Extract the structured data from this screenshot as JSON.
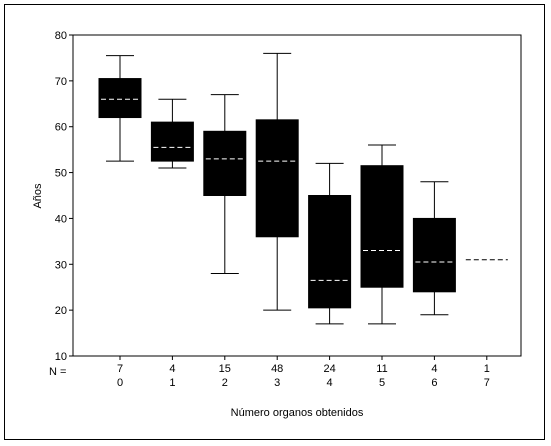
{
  "chart_data": {
    "type": "boxplot",
    "title": "",
    "xlabel": "Número organos obtenidos",
    "ylabel": "Años",
    "ylim": [
      10,
      80
    ],
    "yticks": [
      10,
      20,
      30,
      40,
      50,
      60,
      70,
      80
    ],
    "n_prefix": "N =",
    "categories": [
      "0",
      "1",
      "2",
      "3",
      "4",
      "5",
      "6",
      "7"
    ],
    "n_values": [
      "7",
      "4",
      "15",
      "48",
      "24",
      "11",
      "4",
      "1"
    ],
    "boxes": [
      {
        "category": "0",
        "n": 7,
        "min": 52.5,
        "q1": 62.0,
        "median": 66.0,
        "q3": 70.5,
        "max": 75.5
      },
      {
        "category": "1",
        "n": 4,
        "min": 51.0,
        "q1": 52.5,
        "median": 55.5,
        "q3": 61.0,
        "max": 66.0
      },
      {
        "category": "2",
        "n": 15,
        "min": 28.0,
        "q1": 45.0,
        "median": 53.0,
        "q3": 59.0,
        "max": 67.0
      },
      {
        "category": "3",
        "n": 48,
        "min": 20.0,
        "q1": 36.0,
        "median": 52.5,
        "q3": 61.5,
        "max": 76.0
      },
      {
        "category": "4",
        "n": 24,
        "min": 17.0,
        "q1": 20.5,
        "median": 26.5,
        "q3": 45.0,
        "max": 52.0
      },
      {
        "category": "5",
        "n": 11,
        "min": 17.0,
        "q1": 25.0,
        "median": 33.0,
        "q3": 51.5,
        "max": 56.0
      },
      {
        "category": "6",
        "n": 4,
        "min": 19.0,
        "q1": 24.0,
        "median": 30.5,
        "q3": 40.0,
        "max": 48.0
      },
      {
        "category": "7",
        "n": 1,
        "min": 31.0,
        "q1": 31.0,
        "median": 31.0,
        "q3": 31.0,
        "max": 31.0
      }
    ],
    "box_color": "#000000",
    "median_line_color": "#ffffff",
    "grid": false
  }
}
